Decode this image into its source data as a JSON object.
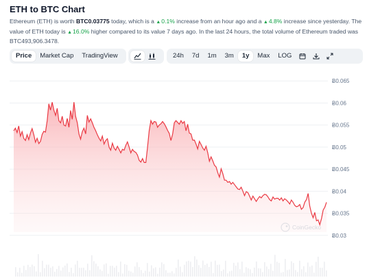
{
  "page": {
    "title": "ETH to BTC Chart",
    "description": {
      "p1": "Ethereum (ETH) is worth ",
      "price": "BTC0.03775",
      "p2": " today, which is a ",
      "change_1h": "0.1%",
      "p3": " increase from an hour ago and a ",
      "change_24h": "4.8%",
      "p4": " increase since yesterday. The value of ETH today is ",
      "change_7d": "16.0%",
      "p5": " higher compared to its value 7 days ago. In the last 24 hours, the total volume of Ethereum traded was BTC493,906.3478."
    }
  },
  "toolbar": {
    "chart_types": [
      "Price",
      "Market Cap",
      "TradingView"
    ],
    "active_chart_type": "Price",
    "view_icons": [
      "line-chart-icon",
      "candlestick-chart-icon"
    ],
    "ranges": [
      "24h",
      "7d",
      "1m",
      "3m",
      "1y",
      "Max",
      "LOG"
    ],
    "active_range": "1y",
    "tool_icons": [
      "calendar-icon",
      "download-icon",
      "expand-icon"
    ]
  },
  "colors": {
    "line": "#ea3943",
    "area_top": "#f8a1a6",
    "accent_up": "#16a34a",
    "volume": "#e5e7eb"
  },
  "watermark": "CoinGecko",
  "chart_data": {
    "type": "area",
    "title": "",
    "xlabel": "",
    "ylabel": "",
    "ylim": [
      0.0295,
      0.0655
    ],
    "yticks": [
      "Ƀ0.065",
      "Ƀ0.06",
      "Ƀ0.055",
      "Ƀ0.05",
      "Ƀ0.045",
      "Ƀ0.04",
      "Ƀ0.035",
      "Ƀ0.03"
    ],
    "ytick_values": [
      0.065,
      0.06,
      0.055,
      0.05,
      0.045,
      0.04,
      0.035,
      0.03
    ],
    "grid": true,
    "series": [
      {
        "values": [
          0.0537,
          0.0543,
          0.0533,
          0.0548,
          0.0525,
          0.0535,
          0.052,
          0.0515,
          0.0528,
          0.0517,
          0.0532,
          0.0542,
          0.0528,
          0.0511,
          0.052,
          0.0508,
          0.0513,
          0.0529,
          0.0536,
          0.0534,
          0.056,
          0.0598,
          0.0584,
          0.0602,
          0.0584,
          0.0572,
          0.0588,
          0.056,
          0.0555,
          0.057,
          0.055,
          0.0548,
          0.0565,
          0.0545,
          0.0583,
          0.0563,
          0.0602,
          0.057,
          0.0555,
          0.053,
          0.0518,
          0.0535,
          0.0543,
          0.053,
          0.0572,
          0.0557,
          0.0564,
          0.0555,
          0.0545,
          0.0537,
          0.0528,
          0.052,
          0.0514,
          0.0525,
          0.0507,
          0.0515,
          0.0519,
          0.05,
          0.0493,
          0.0509,
          0.0498,
          0.0493,
          0.0502,
          0.0495,
          0.0487,
          0.0495,
          0.0493,
          0.0504,
          0.0512,
          0.05,
          0.0487,
          0.0495,
          0.049,
          0.0488,
          0.0482,
          0.047,
          0.0466,
          0.0474,
          0.0465,
          0.0465,
          0.05,
          0.0537,
          0.056,
          0.0552,
          0.0558,
          0.0557,
          0.0545,
          0.055,
          0.0553,
          0.0558,
          0.0553,
          0.0546,
          0.0538,
          0.0531,
          0.0515,
          0.053,
          0.0555,
          0.056,
          0.0556,
          0.0552,
          0.056,
          0.0554,
          0.0558,
          0.0537,
          0.0552,
          0.0532,
          0.053,
          0.0516,
          0.0516,
          0.0507,
          0.0496,
          0.0513,
          0.0506,
          0.0498,
          0.0493,
          0.0502,
          0.0487,
          0.0468,
          0.0478,
          0.0469,
          0.0459,
          0.0455,
          0.0442,
          0.0432,
          0.0451,
          0.044,
          0.0425,
          0.0425,
          0.042,
          0.0422,
          0.0416,
          0.042,
          0.0415,
          0.041,
          0.0405,
          0.0404,
          0.0409,
          0.04,
          0.039,
          0.0399,
          0.0397,
          0.0389,
          0.038,
          0.0389,
          0.0383,
          0.0377,
          0.0383,
          0.0388,
          0.0385,
          0.039,
          0.0393,
          0.0392,
          0.0387,
          0.0381,
          0.0378,
          0.0387,
          0.0382,
          0.0384,
          0.0384,
          0.038,
          0.0385,
          0.0378,
          0.0383,
          0.038,
          0.0376,
          0.0371,
          0.038,
          0.0375,
          0.0368,
          0.0365,
          0.0366,
          0.037,
          0.0359,
          0.0363,
          0.0375,
          0.0381,
          0.0395,
          0.0366,
          0.035,
          0.034,
          0.0352,
          0.0333,
          0.0335,
          0.0324,
          0.0338,
          0.0357,
          0.0364,
          0.0375
        ]
      }
    ]
  }
}
